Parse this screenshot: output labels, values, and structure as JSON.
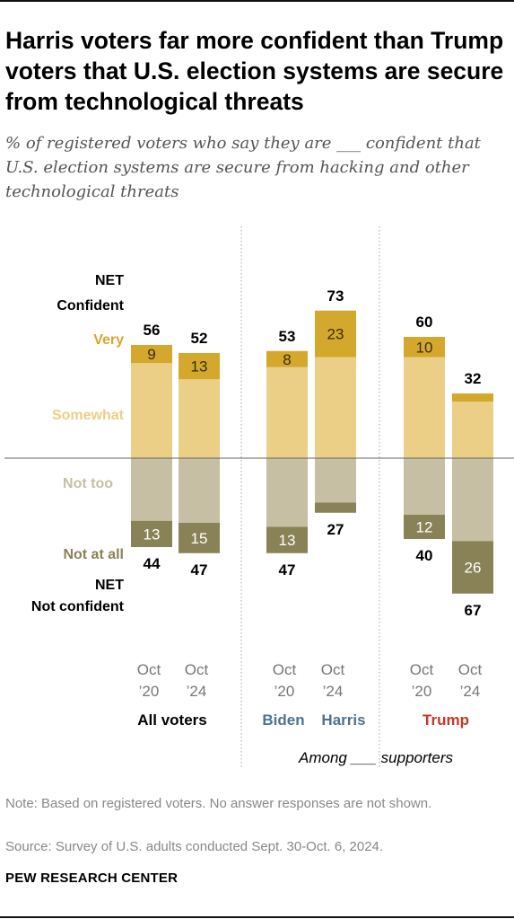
{
  "title": "Harris voters far more confident than Trump voters that U.S. election systems are secure from technological threats",
  "subtitle": "% of registered voters who say they are ___ confident that U.S. election systems are secure from hacking and other technological threats",
  "note": "Note: Based on registered voters. No answer responses are not shown.",
  "source": "Source: Survey of U.S. adults conducted Sept. 30-Oct. 6, 2024.",
  "brand": "PEW RESEARCH CENTER",
  "colors": {
    "very": "#d4a82c",
    "somewhat": "#eccf86",
    "not_too": "#c6bfa4",
    "not_at_all": "#8a8257",
    "biden": "#4f7390",
    "harris": "#4f7390",
    "trump": "#c0392b"
  },
  "chart_data": {
    "type": "bar",
    "orientation": "diverging-stacked",
    "legend_labels": {
      "net_confident": [
        "NET",
        "Confident"
      ],
      "very": "Very",
      "somewhat": "Somewhat",
      "not_too": "Not too",
      "not_at_all": "Not at all",
      "net_not_confident": [
        "NET",
        "Not confident"
      ]
    },
    "among_label": "Among ___ supporters",
    "groups": [
      {
        "label": "All voters",
        "label_color": "#000000",
        "bars": [
          {
            "period": [
              "Oct",
              "’20"
            ],
            "net_confident": 56,
            "very": 9,
            "somewhat": 47,
            "not_too": 31,
            "not_at_all": 13,
            "net_not_confident": 44
          },
          {
            "period": [
              "Oct",
              "’24"
            ],
            "net_confident": 52,
            "very": 13,
            "somewhat": 39,
            "not_too": 32,
            "not_at_all": 15,
            "net_not_confident": 47
          }
        ]
      },
      {
        "label": "Biden",
        "label_color": "#4f7390",
        "bars": [
          {
            "period": [
              "Oct",
              "’20"
            ],
            "net_confident": 53,
            "very": 8,
            "somewhat": 45,
            "not_too": 34,
            "not_at_all": 13,
            "net_not_confident": 47
          }
        ]
      },
      {
        "label": "Harris",
        "label_color": "#4f7390",
        "bars": [
          {
            "period": [
              "Oct",
              "’24"
            ],
            "net_confident": 73,
            "very": 23,
            "somewhat": 50,
            "not_too": 22,
            "not_at_all": 5,
            "net_not_confident": 27
          }
        ]
      },
      {
        "label": "Trump",
        "label_color": "#c0392b",
        "bars": [
          {
            "period": [
              "Oct",
              "’20"
            ],
            "net_confident": 60,
            "very": 10,
            "somewhat": 50,
            "not_too": 28,
            "not_at_all": 12,
            "net_not_confident": 40
          },
          {
            "period": [
              "Oct",
              "’24"
            ],
            "net_confident": 32,
            "very": 4,
            "somewhat": 28,
            "not_too": 41,
            "not_at_all": 26,
            "net_not_confident": 67
          }
        ]
      }
    ]
  }
}
